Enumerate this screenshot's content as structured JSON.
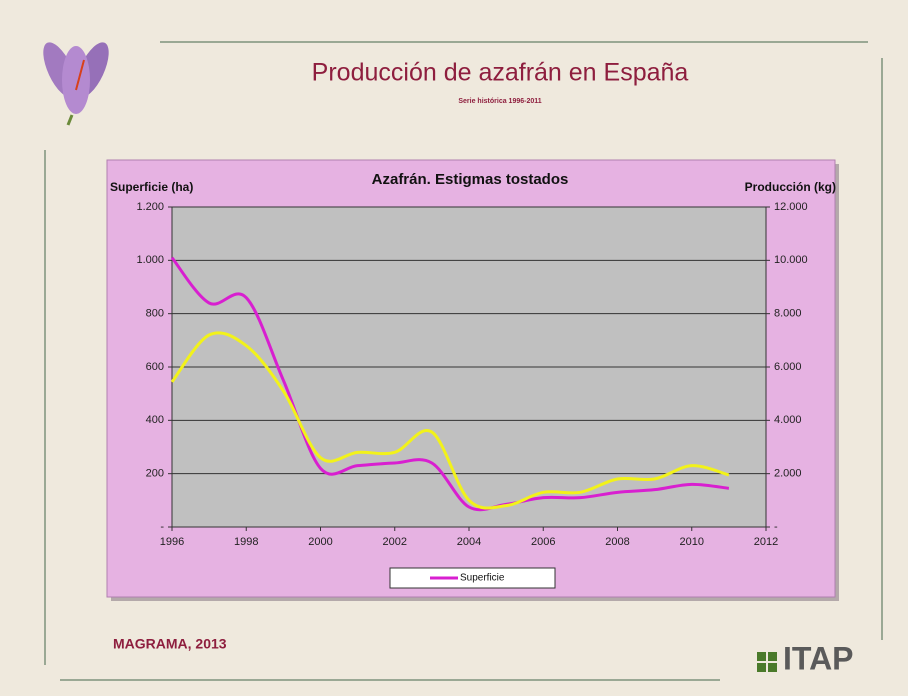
{
  "slide": {
    "title": "Producción de azafrán en España",
    "subtitle": "Serie histórica 1996-2011",
    "source": "MAGRAMA, 2013",
    "logo": "ITAP"
  },
  "chart_data": {
    "type": "line",
    "title": "Azafrán. Estigmas tostados",
    "y_label": "Superficie (ha)",
    "y2_label": "Producción (kg)",
    "x": [
      1996,
      1997,
      1998,
      1999,
      2000,
      2001,
      2002,
      2003,
      2004,
      2005,
      2006,
      2007,
      2008,
      2009,
      2010,
      2011
    ],
    "series": [
      {
        "name": "Superficie",
        "color": "#d81fd0",
        "values": [
          1010,
          840,
          860,
          550,
          220,
          230,
          240,
          240,
          75,
          85,
          110,
          110,
          130,
          140,
          160,
          145
        ]
      },
      {
        "color": "#f2f21a",
        "axis": "y2",
        "values": [
          5440,
          7200,
          6800,
          5100,
          2600,
          2800,
          2800,
          3560,
          1000,
          800,
          1300,
          1300,
          1800,
          1800,
          2300,
          1950
        ]
      }
    ],
    "xlim": [
      1996,
      2012
    ],
    "xticks": [
      1996,
      1998,
      2000,
      2002,
      2004,
      2006,
      2008,
      2010,
      2012
    ],
    "ylim": [
      0,
      1200
    ],
    "yticks": [
      {
        "value": 0,
        "label": "-"
      },
      200,
      400,
      600,
      800,
      {
        "value": 1000,
        "label": "1.000"
      },
      {
        "value": 1200,
        "label": "1.200"
      }
    ],
    "y2lim": [
      0,
      12000
    ],
    "y2ticks": [
      {
        "value": 0,
        "label": "-"
      },
      {
        "value": 2000,
        "label": "2.000"
      },
      {
        "value": 4000,
        "label": "4.000"
      },
      {
        "value": 6000,
        "label": "6.000"
      },
      {
        "value": 8000,
        "label": "8.000"
      },
      {
        "value": 10000,
        "label": "10.000"
      },
      {
        "value": 12000,
        "label": "12.000"
      }
    ],
    "grid": true,
    "legend": "bottom"
  }
}
